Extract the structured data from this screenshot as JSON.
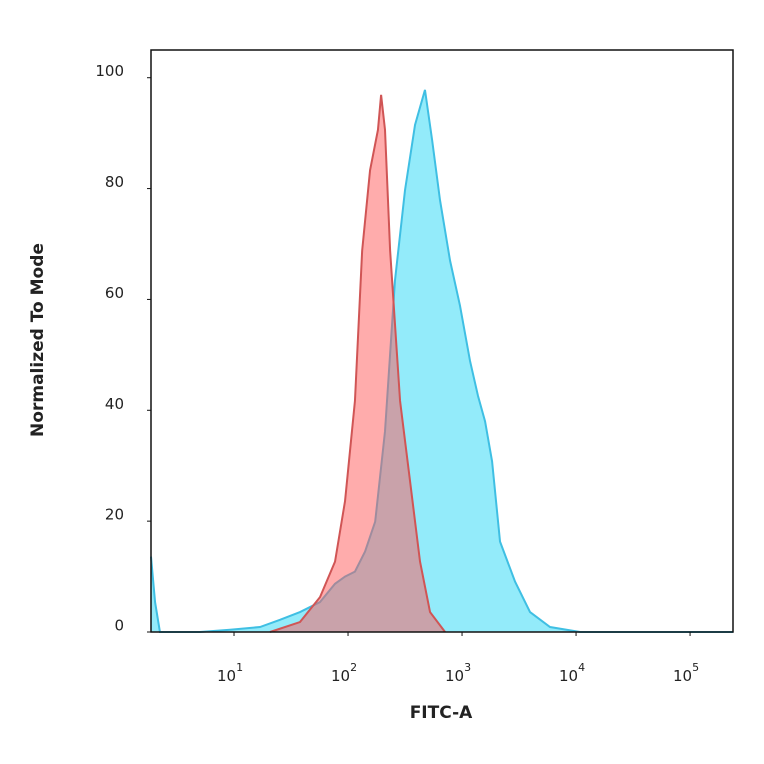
{
  "chart_data": {
    "type": "histogram-overlay",
    "x_label": "FITC-A",
    "y_label": "Normalized To Mode",
    "xscale": "log",
    "xlim": [
      1.87,
      238000
    ],
    "ylim": [
      0,
      105
    ],
    "xticks": [
      {
        "value": 10,
        "label": "10",
        "exponent": "1"
      },
      {
        "value": 100,
        "label": "10",
        "exponent": "2"
      },
      {
        "value": 1000,
        "label": "10",
        "exponent": "3"
      },
      {
        "value": 10000,
        "label": "10",
        "exponent": "4"
      },
      {
        "value": 100000,
        "label": "10",
        "exponent": "5"
      }
    ],
    "yticks": [
      0,
      20,
      40,
      60,
      80,
      100
    ],
    "series": [
      {
        "color": "#3fbfe3",
        "fill": "rgba(40,215,245,0.5)",
        "x": [
          1.87,
          2.03,
          2.24,
          3.04,
          5.03,
          9.23,
          16.9,
          25.3,
          37.9,
          56.8,
          76.9,
          94.1,
          115,
          141,
          173,
          211,
          258,
          316,
          387,
          473,
          546,
          641,
          785,
          959,
          1175,
          1380,
          1592,
          1834,
          2154,
          2916,
          3948,
          5911,
          10840,
          19860,
          238000
        ],
        "values": [
          13.6,
          5.4,
          0,
          0,
          0,
          0.4,
          0.9,
          2.2,
          3.6,
          5.4,
          8.7,
          10,
          10.9,
          14.5,
          19.9,
          36.2,
          63.4,
          79.7,
          91.5,
          97.8,
          88.8,
          77.9,
          67,
          58.9,
          48.9,
          42.6,
          38,
          30.8,
          16.3,
          9.1,
          3.6,
          0.9,
          0,
          0,
          0
        ]
      },
      {
        "color": "#d05555",
        "fill": "rgba(255,90,90,0.5)",
        "x": [
          20.7,
          37.9,
          56.8,
          76.9,
          94.1,
          115,
          133,
          156,
          183,
          195,
          211,
          234,
          286,
          350,
          428,
          524,
          710
        ],
        "values": [
          0,
          1.8,
          6.3,
          12.7,
          23.6,
          41.7,
          68.8,
          83.3,
          90.6,
          96.9,
          90.6,
          68.8,
          41.7,
          27.2,
          12.7,
          3.6,
          0
        ]
      }
    ]
  }
}
